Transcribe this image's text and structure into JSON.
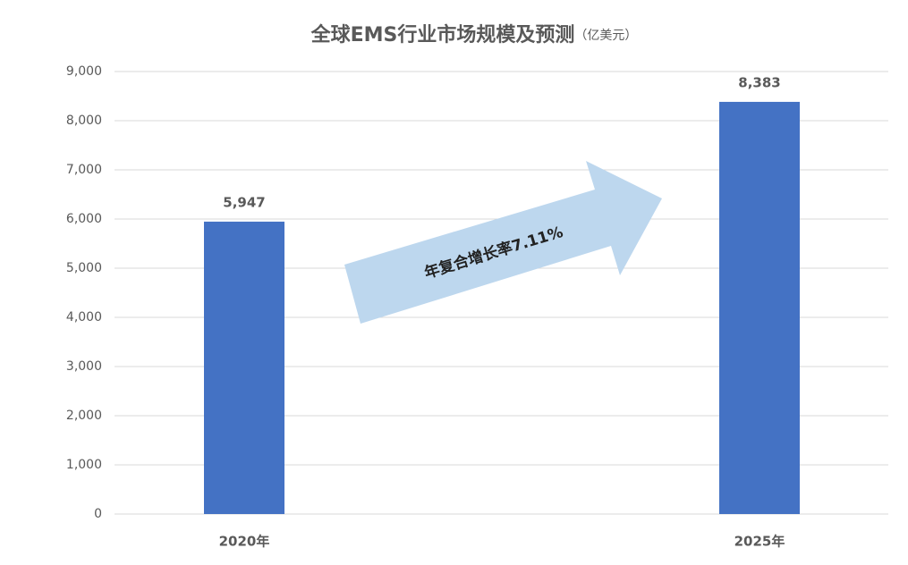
{
  "chart_data": {
    "type": "bar",
    "title": "全球EMS行业市场规模及预测",
    "subtitle": "（亿美元）",
    "annotation": "年复合增长率7.11%",
    "categories": [
      "2020年",
      "2025年"
    ],
    "values": [
      5947,
      8383
    ],
    "value_labels": [
      "5,947",
      "8,383"
    ],
    "color": "#4472c4",
    "ylim": [
      0,
      9000
    ],
    "yticks": [
      0,
      {
        "value": 1000,
        "label": "1,000"
      },
      {
        "value": 2000,
        "label": "2,000"
      },
      {
        "value": 3000,
        "label": "3,000"
      },
      {
        "value": 4000,
        "label": "4,000"
      },
      {
        "value": 5000,
        "label": "5,000"
      },
      {
        "value": 6000,
        "label": "6,000"
      },
      {
        "value": 7000,
        "label": "7,000"
      },
      {
        "value": 8000,
        "label": "8,000"
      },
      {
        "value": 9000,
        "label": "9,000"
      }
    ],
    "grid": true
  }
}
